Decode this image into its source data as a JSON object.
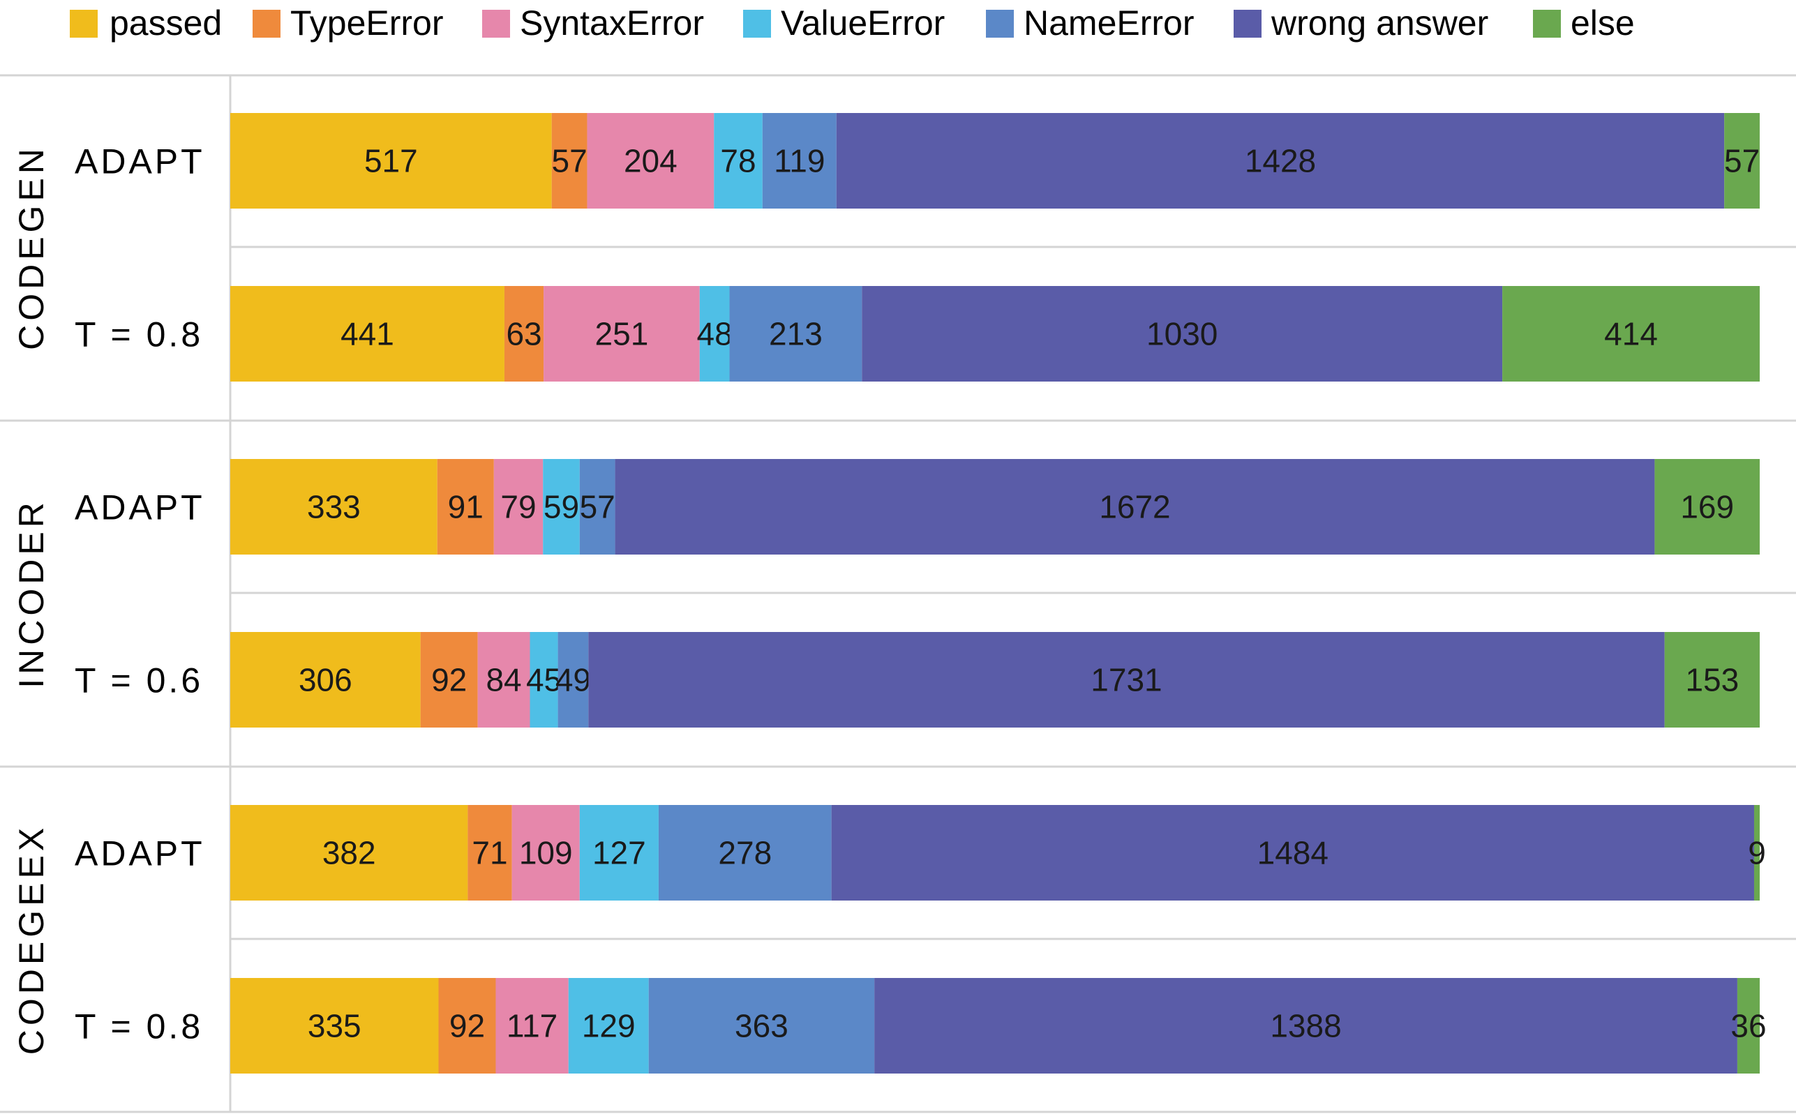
{
  "chart_data": {
    "type": "bar",
    "orientation": "horizontal",
    "stacked": "100%",
    "legend_position": "top",
    "grid": false,
    "categories_legend": [
      "passed",
      "TypeError",
      "SyntaxError",
      "ValueError",
      "NameError",
      "wrong answer",
      "else"
    ],
    "colors": {
      "passed": "#f0bc1c",
      "TypeError": "#ef8a3c",
      "SyntaxError": "#e687ab",
      "ValueError": "#4fbfe6",
      "NameError": "#5b88c8",
      "wrong answer": "#5a5ca8",
      "else": "#6aa84f"
    },
    "groups": [
      {
        "name": "CODEGEN",
        "rows": [
          {
            "label": "ADAPT",
            "values": [
              517,
              57,
              204,
              78,
              119,
              1428,
              57
            ]
          },
          {
            "label": "T = 0.8",
            "values": [
              441,
              63,
              251,
              48,
              213,
              1030,
              414
            ]
          }
        ]
      },
      {
        "name": "INCODER",
        "rows": [
          {
            "label": "ADAPT",
            "values": [
              333,
              91,
              79,
              59,
              57,
              1672,
              169
            ]
          },
          {
            "label": "T = 0.6",
            "values": [
              306,
              92,
              84,
              45,
              49,
              1731,
              153
            ]
          }
        ]
      },
      {
        "name": "CODEGEEX",
        "rows": [
          {
            "label": "ADAPT",
            "values": [
              382,
              71,
              109,
              127,
              278,
              1484,
              9
            ]
          },
          {
            "label": "T = 0.8",
            "values": [
              335,
              92,
              117,
              129,
              363,
              1388,
              36
            ]
          }
        ]
      }
    ]
  }
}
